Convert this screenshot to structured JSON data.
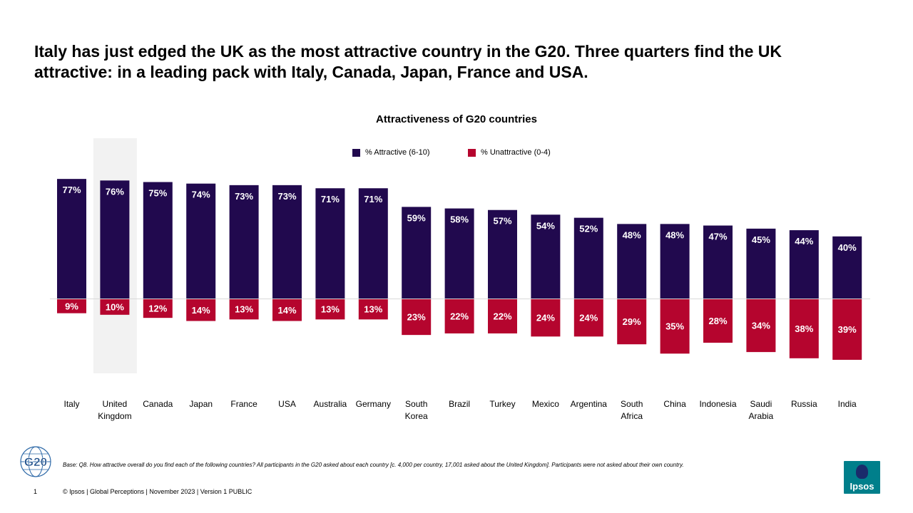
{
  "headline": {
    "line1": "Italy has just edged the UK as the most attractive country in the G20.  Three quarters find the UK",
    "line2": "attractive:  in a leading pack with Italy, Canada, Japan, France and USA."
  },
  "colors": {
    "attractive": "#21094e",
    "unattractive": "#b5052e",
    "highlight": "#f2f2f2",
    "baseline": "#d9d9d9"
  },
  "chart_data": {
    "type": "bar",
    "title": "Attractiveness of G20 countries",
    "categories": [
      [
        "Italy"
      ],
      [
        "United",
        "Kingdom"
      ],
      [
        "Canada"
      ],
      [
        "Japan"
      ],
      [
        "France"
      ],
      [
        "USA"
      ],
      [
        "Australia"
      ],
      [
        "Germany"
      ],
      [
        "South",
        "Korea"
      ],
      [
        "Brazil"
      ],
      [
        "Turkey"
      ],
      [
        "Mexico"
      ],
      [
        "Argentina"
      ],
      [
        "South",
        "Africa"
      ],
      [
        "China"
      ],
      [
        "Indonesia"
      ],
      [
        "Saudi",
        "Arabia"
      ],
      [
        "Russia"
      ],
      [
        "India"
      ]
    ],
    "highlighted_category": "United Kingdom",
    "series": [
      {
        "name": "% Attractive (6-10)",
        "direction": "up",
        "values": [
          77,
          76,
          75,
          74,
          73,
          73,
          71,
          71,
          59,
          58,
          57,
          54,
          52,
          48,
          48,
          47,
          45,
          44,
          40
        ],
        "labels": [
          "77%",
          "76%",
          "75%",
          "74%",
          "73%",
          "73%",
          "71%",
          "71%",
          "59%",
          "58%",
          "57%",
          "54%",
          "52%",
          "48%",
          "48%",
          "47%",
          "45%",
          "44%",
          "40%"
        ]
      },
      {
        "name": "% Unattractive (0-4)",
        "direction": "down",
        "values": [
          9,
          10,
          12,
          14,
          13,
          14,
          13,
          13,
          23,
          22,
          22,
          24,
          24,
          29,
          35,
          28,
          34,
          38,
          39
        ],
        "labels": [
          "9%",
          "10%",
          "12%",
          "14%",
          "13%",
          "14%",
          "13%",
          "13%",
          "23%",
          "22%",
          "22%",
          "24%",
          "24%",
          "29%",
          "35%",
          "28%",
          "34%",
          "38%",
          "39%"
        ]
      }
    ]
  },
  "legend": {
    "attractive": "% Attractive (6-10)",
    "unattractive": "% Unattractive (0-4)"
  },
  "footnote": "Base: Q8. How attractive overall do you find each of the following countries? All participants in the G20 asked about each country [c. 4,000 per country, 17,001 asked about the United Kingdom]. Participants were not asked about their own country.",
  "footer": {
    "page_number": "1",
    "copyright": "© Ipsos | Global Perceptions | November 2023 | Version 1  PUBLIC"
  },
  "logos": {
    "g20": "G20",
    "ipsos": "Ipsos"
  }
}
